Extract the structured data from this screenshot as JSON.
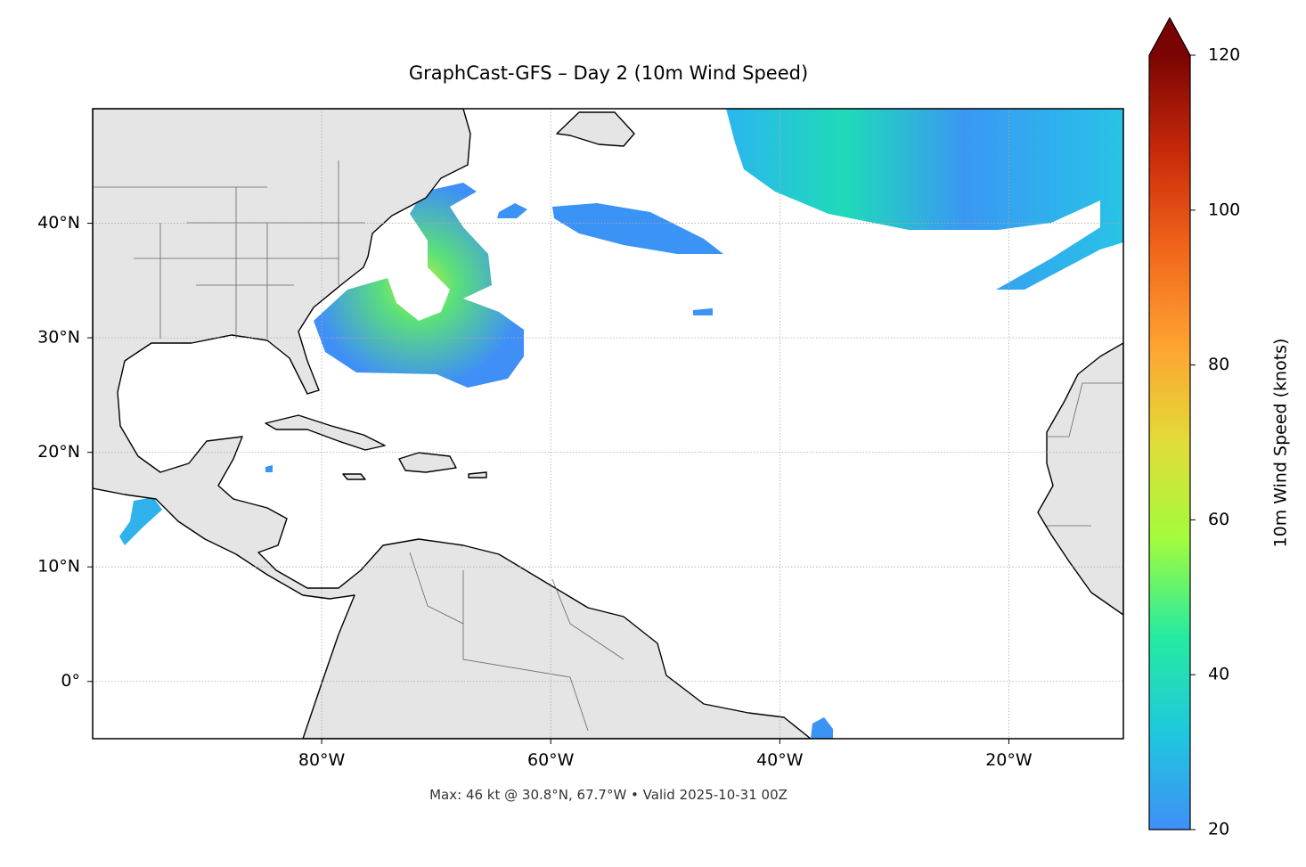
{
  "chart_data": {
    "type": "map",
    "title": "GraphCast-GFS – Day 2 (10m Wind Speed)",
    "annotation": "Max: 46 kt @ 30.8°N, 67.7°W • Valid 2025-10-31 00Z",
    "xlim": [
      -100,
      -10
    ],
    "ylim": [
      -5,
      50
    ],
    "xticks": [
      {
        "value": -80,
        "label": "80°W"
      },
      {
        "value": -60,
        "label": "60°W"
      },
      {
        "value": -40,
        "label": "40°W"
      },
      {
        "value": -20,
        "label": "20°W"
      }
    ],
    "yticks": [
      {
        "value": 0,
        "label": "0°"
      },
      {
        "value": 10,
        "label": "10°N"
      },
      {
        "value": 20,
        "label": "20°N"
      },
      {
        "value": 30,
        "label": "30°N"
      },
      {
        "value": 40,
        "label": "40°N"
      }
    ],
    "grid": true,
    "colorbar": {
      "label": "10m Wind Speed (knots)",
      "lim": [
        20,
        120
      ],
      "ticks": [
        20,
        40,
        60,
        80,
        100,
        120
      ],
      "colors": [
        "#3f8ff7",
        "#1fc8de",
        "#25eba0",
        "#a3fc3c",
        "#e2dc38",
        "#fea331",
        "#f2651b",
        "#c9290a",
        "#7a0403"
      ],
      "extend": "max"
    }
  }
}
